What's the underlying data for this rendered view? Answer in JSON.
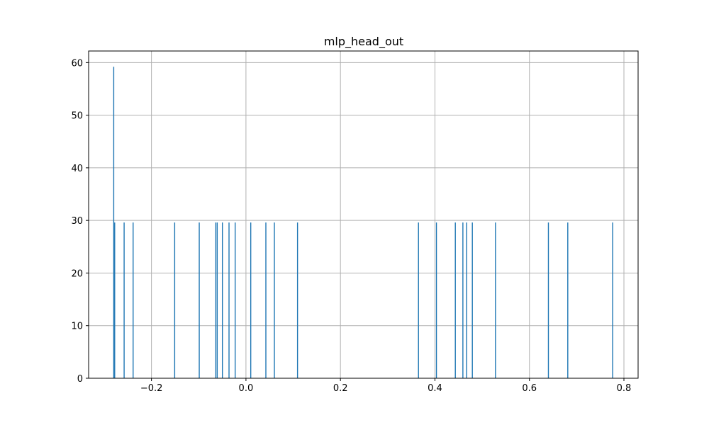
{
  "chart_data": {
    "type": "bar",
    "title": "mlp_head_out",
    "xlabel": "",
    "ylabel": "",
    "xlim": [
      -0.333,
      0.83
    ],
    "ylim": [
      0,
      62.2
    ],
    "grid": true,
    "bar_color": "#1f77b4",
    "bar_width": 0.0018,
    "x_ticks": [
      {
        "value": -0.2,
        "label": "−0.2"
      },
      {
        "value": 0.0,
        "label": "0.0"
      },
      {
        "value": 0.2,
        "label": "0.2"
      },
      {
        "value": 0.4,
        "label": "0.4"
      },
      {
        "value": 0.6,
        "label": "0.6"
      },
      {
        "value": 0.8,
        "label": "0.8"
      }
    ],
    "y_ticks": [
      {
        "value": 0,
        "label": "0"
      },
      {
        "value": 10,
        "label": "10"
      },
      {
        "value": 20,
        "label": "20"
      },
      {
        "value": 30,
        "label": "30"
      },
      {
        "value": 40,
        "label": "40"
      },
      {
        "value": 50,
        "label": "50"
      },
      {
        "value": 60,
        "label": "60"
      }
    ],
    "bars": [
      {
        "x": -0.28,
        "value": 59.2
      },
      {
        "x": -0.278,
        "value": 29.6
      },
      {
        "x": -0.258,
        "value": 29.6
      },
      {
        "x": -0.239,
        "value": 29.6
      },
      {
        "x": -0.151,
        "value": 29.6
      },
      {
        "x": -0.099,
        "value": 29.6
      },
      {
        "x": -0.064,
        "value": 29.6
      },
      {
        "x": -0.061,
        "value": 29.6
      },
      {
        "x": -0.05,
        "value": 29.6
      },
      {
        "x": -0.036,
        "value": 29.6
      },
      {
        "x": -0.023,
        "value": 29.6
      },
      {
        "x": 0.01,
        "value": 29.6
      },
      {
        "x": 0.042,
        "value": 29.6
      },
      {
        "x": 0.06,
        "value": 29.6
      },
      {
        "x": 0.109,
        "value": 29.6
      },
      {
        "x": 0.365,
        "value": 29.6
      },
      {
        "x": 0.403,
        "value": 29.6
      },
      {
        "x": 0.443,
        "value": 29.6
      },
      {
        "x": 0.459,
        "value": 29.6
      },
      {
        "x": 0.467,
        "value": 29.6
      },
      {
        "x": 0.479,
        "value": 29.6
      },
      {
        "x": 0.528,
        "value": 29.6
      },
      {
        "x": 0.64,
        "value": 29.6
      },
      {
        "x": 0.681,
        "value": 29.6
      },
      {
        "x": 0.776,
        "value": 29.6
      }
    ]
  }
}
